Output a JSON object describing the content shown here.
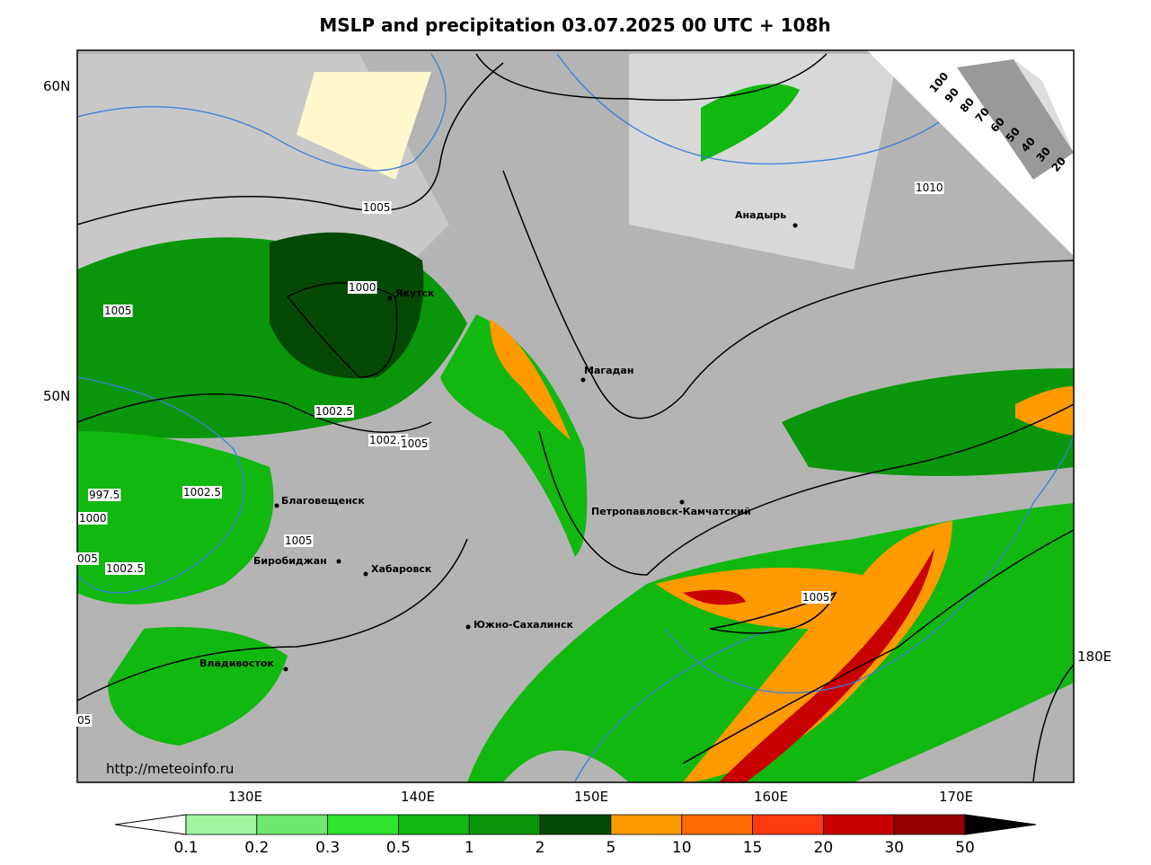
{
  "title": "MSLP and precipitation 03.07.2025 00 UTC + 108h",
  "latitude_labels": [
    "60N",
    "50N"
  ],
  "longitude_labels": [
    "130E",
    "140E",
    "150E",
    "160E",
    "170E",
    "180E"
  ],
  "cities": [
    "Якутск",
    "Магадан",
    "Анадырь",
    "Благовещенск",
    "Биробиджан",
    "Хабаровск",
    "Петропавловск-Камчатский",
    "Южно-Сахалинск",
    "Владивосток"
  ],
  "isobar_labels": [
    "1005",
    "1000",
    "1005",
    "1002.5",
    "1002.5",
    "1005",
    "997.5",
    "1002.5",
    "1000",
    "1005",
    "005",
    "1002.5",
    "1005",
    "05",
    "1010"
  ],
  "url": "http://meteoinfo.ru",
  "cloud_scale": [
    100,
    90,
    80,
    70,
    60,
    50,
    40,
    30,
    20
  ],
  "precipitation_scale": {
    "levels": [
      0.1,
      0.2,
      0.3,
      0.5,
      1,
      2,
      5,
      10,
      15,
      20,
      30,
      50
    ],
    "colors": [
      "#a0f5a0",
      "#6ee86e",
      "#2ee62e",
      "#10b810",
      "#0a960a",
      "#044a04",
      "#ff9a00",
      "#ff6a00",
      "#ff3a10",
      "#c80000",
      "#960000"
    ],
    "under_color": "#ffffff",
    "over_color": "#000000"
  }
}
